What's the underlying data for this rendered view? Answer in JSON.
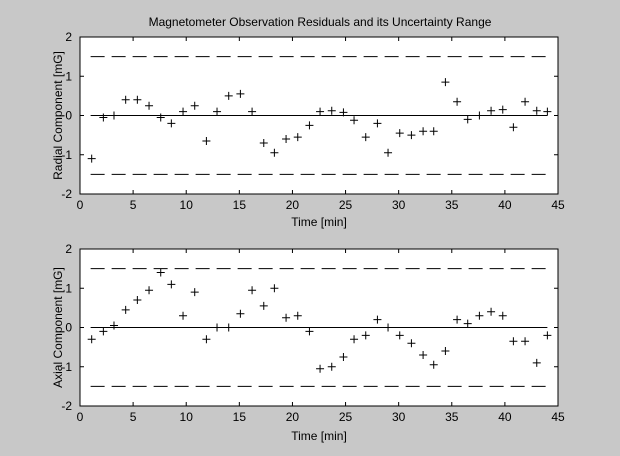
{
  "figure": {
    "background": "#c8c8c8",
    "axes_background": "#ffffff"
  },
  "chart_data": [
    {
      "type": "scatter",
      "title": "Magnetometer Observation Residuals and its Uncertainty Range",
      "xlabel": "Time [min]",
      "ylabel": "Radial Component [mG]",
      "xlim": [
        0,
        45
      ],
      "ylim": [
        -2,
        2
      ],
      "xticks": [
        "0",
        "5",
        "10",
        "15",
        "20",
        "25",
        "30",
        "35",
        "40",
        "45"
      ],
      "yticks": [
        "-2",
        "-1",
        "0",
        "1",
        "2"
      ],
      "grid": false,
      "marker": "+",
      "x": [
        1.1,
        2.2,
        3.2,
        4.3,
        5.4,
        6.5,
        7.6,
        8.6,
        9.7,
        10.8,
        11.9,
        12.9,
        14.0,
        15.1,
        16.2,
        17.3,
        18.3,
        19.4,
        20.5,
        21.6,
        22.6,
        23.7,
        24.8,
        25.8,
        26.9,
        28.0,
        29.0,
        30.1,
        31.2,
        32.3,
        33.3,
        34.4,
        35.5,
        36.5,
        37.6,
        38.7,
        39.8,
        40.8,
        41.9,
        43.0,
        44.0
      ],
      "y": [
        -1.1,
        -0.05,
        0.0,
        0.4,
        0.4,
        0.25,
        -0.05,
        -0.2,
        0.1,
        0.25,
        -0.65,
        0.1,
        0.5,
        0.55,
        0.1,
        -0.7,
        -0.95,
        -0.6,
        -0.55,
        -0.25,
        0.1,
        0.12,
        0.08,
        -0.12,
        -0.55,
        -0.2,
        -0.95,
        -0.45,
        -0.5,
        -0.4,
        -0.4,
        0.85,
        0.35,
        -0.1,
        0.0,
        0.12,
        0.15,
        -0.3,
        0.35,
        0.12,
        0.1
      ],
      "zero_line": {
        "x": [
          1,
          44
        ],
        "y": 0
      },
      "uncertainty_range": {
        "upper": 1.5,
        "lower": -1.5,
        "x": [
          1,
          44
        ],
        "style": "dashed"
      }
    },
    {
      "type": "scatter",
      "xlabel": "Time [min]",
      "ylabel": "Axial Component [mG]",
      "xlim": [
        0,
        45
      ],
      "ylim": [
        -2,
        2
      ],
      "xticks": [
        "0",
        "5",
        "10",
        "15",
        "20",
        "25",
        "30",
        "35",
        "40",
        "45"
      ],
      "yticks": [
        "-2",
        "-1",
        "0",
        "1",
        "2"
      ],
      "grid": false,
      "marker": "+",
      "x": [
        1.1,
        2.2,
        3.2,
        4.3,
        5.4,
        6.5,
        7.6,
        8.6,
        9.7,
        10.8,
        11.9,
        12.9,
        14.0,
        15.1,
        16.2,
        17.3,
        18.3,
        19.4,
        20.5,
        21.6,
        22.6,
        23.7,
        24.8,
        25.8,
        26.9,
        28.0,
        29.0,
        30.1,
        31.2,
        32.3,
        33.3,
        34.4,
        35.5,
        36.5,
        37.6,
        38.7,
        39.8,
        40.8,
        41.9,
        43.0,
        44.0
      ],
      "y": [
        -0.3,
        -0.1,
        0.05,
        0.45,
        0.7,
        0.95,
        1.4,
        1.1,
        0.3,
        0.9,
        -0.3,
        0.0,
        0.0,
        0.35,
        0.95,
        0.55,
        1.0,
        0.25,
        0.3,
        -0.1,
        -1.05,
        -1.0,
        -0.75,
        -0.3,
        -0.2,
        0.2,
        0.0,
        -0.2,
        -0.4,
        -0.7,
        -0.95,
        -0.6,
        0.2,
        0.1,
        0.3,
        0.4,
        0.3,
        -0.35,
        -0.35,
        -0.9,
        -0.2
      ],
      "zero_line": {
        "x": [
          1,
          44
        ],
        "y": 0
      },
      "uncertainty_range": {
        "upper": 1.5,
        "lower": -1.5,
        "x": [
          1,
          44
        ],
        "style": "dashed"
      }
    }
  ]
}
